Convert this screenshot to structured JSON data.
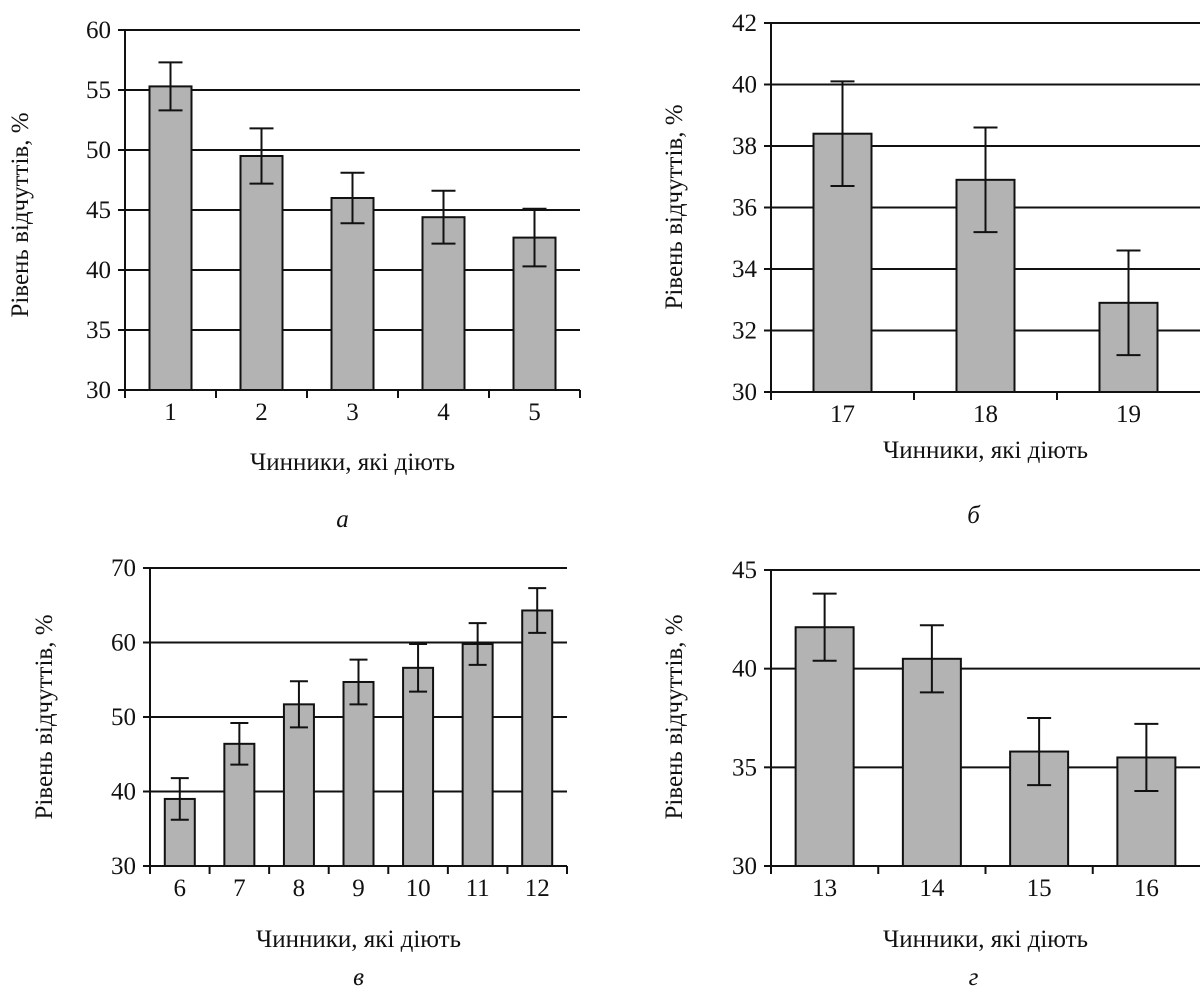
{
  "chart_data": [
    {
      "type": "bar",
      "panel": "а",
      "xlabel": "Чинники, які діють",
      "ylabel": "Рівень відчуттів, %",
      "categories": [
        "1",
        "2",
        "3",
        "4",
        "5"
      ],
      "values": [
        55.3,
        49.5,
        46.0,
        44.4,
        42.7
      ],
      "error": [
        2.0,
        2.3,
        2.1,
        2.2,
        2.4
      ],
      "ylim": [
        30,
        60
      ],
      "yticks": [
        30,
        35,
        40,
        45,
        50,
        55,
        60
      ],
      "grid": true,
      "bar_color": "#b3b3b3"
    },
    {
      "type": "bar",
      "panel": "б",
      "xlabel": "Чинники, які діють",
      "ylabel": "Рівень відчуттів, %",
      "categories": [
        "17",
        "18",
        "19"
      ],
      "values": [
        38.4,
        36.9,
        32.9
      ],
      "error": [
        1.7,
        1.7,
        1.7
      ],
      "ylim": [
        30,
        42
      ],
      "yticks": [
        30,
        32,
        34,
        36,
        38,
        40,
        42
      ],
      "grid": true,
      "bar_color": "#b3b3b3"
    },
    {
      "type": "bar",
      "panel": "в",
      "xlabel": "Чинники, які діють",
      "ylabel": "Рівень відчуттів, %",
      "categories": [
        "6",
        "7",
        "8",
        "9",
        "10",
        "11",
        "12"
      ],
      "values": [
        39.0,
        46.4,
        51.7,
        54.7,
        56.6,
        59.8,
        64.3
      ],
      "error": [
        2.8,
        2.8,
        3.1,
        3.0,
        3.2,
        2.8,
        3.0
      ],
      "ylim": [
        30,
        70
      ],
      "yticks": [
        30,
        40,
        50,
        60,
        70
      ],
      "grid": true,
      "bar_color": "#b3b3b3"
    },
    {
      "type": "bar",
      "panel": "г",
      "xlabel": "Чинники, які діють",
      "ylabel": "Рівень відчуттів, %",
      "categories": [
        "13",
        "14",
        "15",
        "16"
      ],
      "values": [
        42.1,
        40.5,
        35.8,
        35.5
      ],
      "error": [
        1.7,
        1.7,
        1.7,
        1.7
      ],
      "ylim": [
        30,
        45
      ],
      "yticks": [
        30,
        35,
        40,
        45
      ],
      "grid": true,
      "bar_color": "#b3b3b3"
    }
  ]
}
